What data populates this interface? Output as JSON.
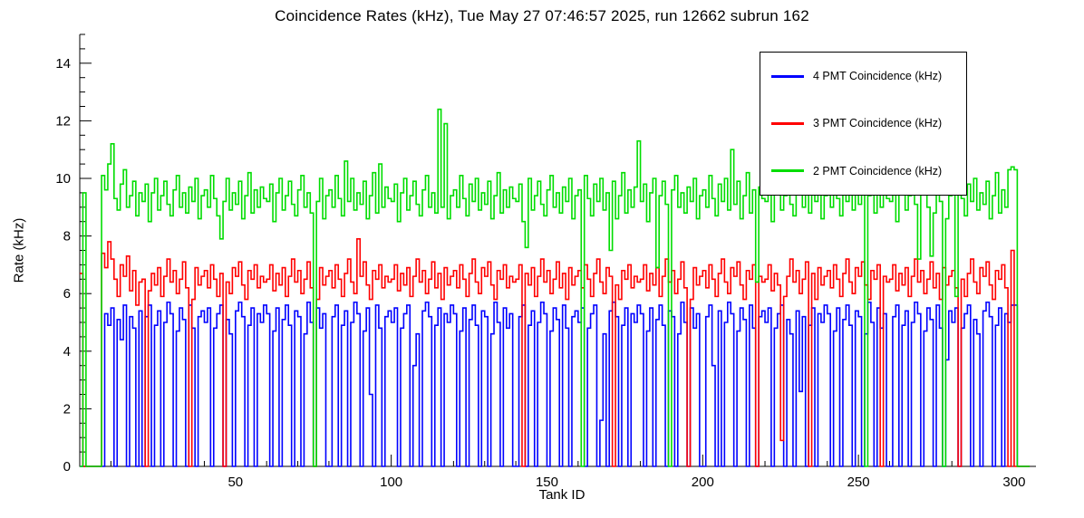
{
  "chart_data": {
    "type": "step-histogram",
    "title": "Coincidence Rates (kHz), Tue May 27 07:46:57 2025, run 12662 subrun 162",
    "xlabel": "Tank ID",
    "ylabel": "Rate (kHz)",
    "xlim": [
      0,
      307
    ],
    "ylim": [
      0,
      15
    ],
    "x_major_ticks": [
      50,
      100,
      150,
      200,
      250,
      300
    ],
    "x_minor_step": 10,
    "y_major_ticks": [
      0,
      2,
      4,
      6,
      8,
      10,
      12,
      14
    ],
    "y_minor_step": 0.5,
    "legend_position": "top-right",
    "axis_color": "#000000",
    "background": "#ffffff",
    "bin_start": 1,
    "series": [
      {
        "name": "4 PMT Coincidence (kHz)",
        "color": "#0000ff",
        "values": [
          0,
          0,
          0,
          0,
          0,
          0,
          0,
          0,
          5.3,
          4.9,
          5.5,
          0,
          5.1,
          4.4,
          5.6,
          0,
          5.2,
          4.8,
          0,
          5.4,
          0,
          5.2,
          5.6,
          0,
          4.9,
          5.4,
          0,
          5.0,
          5.7,
          5.3,
          0,
          4.7,
          5.5,
          5.1,
          0,
          5.6,
          4.8,
          0,
          5.2,
          5.4,
          5.0,
          5.5,
          0,
          4.8,
          5.3,
          5.6,
          0,
          5.1,
          4.6,
          0,
          5.4,
          5.7,
          5.2,
          0,
          4.9,
          5.5,
          0,
          5.3,
          5.0,
          5.6,
          5.3,
          0,
          4.7,
          5.5,
          0,
          5.1,
          5.6,
          4.9,
          0,
          5.4,
          5.2,
          0,
          4.6,
          5.7,
          5.0,
          0,
          5.5,
          4.8,
          5.3,
          0,
          0,
          5.2,
          5.6,
          0,
          4.9,
          5.4,
          0,
          5.0,
          5.7,
          5.3,
          0,
          4.7,
          5.5,
          2.5,
          0,
          5.6,
          4.8,
          0,
          5.2,
          5.4,
          5.0,
          5.5,
          0,
          4.8,
          5.3,
          5.6,
          0,
          3.5,
          4.6,
          0,
          5.4,
          5.7,
          5.2,
          0,
          4.9,
          5.5,
          0,
          5.3,
          5.0,
          5.6,
          5.3,
          0,
          4.7,
          5.5,
          0,
          5.1,
          5.6,
          4.9,
          0,
          5.4,
          5.2,
          0,
          4.6,
          5.7,
          5.0,
          0,
          5.5,
          4.8,
          5.3,
          0,
          0,
          5.2,
          5.6,
          0,
          4.9,
          5.4,
          0,
          5.0,
          5.7,
          5.3,
          0,
          4.7,
          5.5,
          5.1,
          0,
          5.6,
          4.8,
          0,
          5.2,
          5.4,
          5.0,
          5.5,
          0,
          4.8,
          5.3,
          5.6,
          0,
          1.6,
          4.6,
          0,
          5.4,
          5.7,
          5.2,
          0,
          4.9,
          5.5,
          0,
          5.3,
          5.0,
          5.6,
          5.3,
          0,
          4.7,
          5.5,
          0,
          5.1,
          5.6,
          4.9,
          0,
          5.4,
          5.2,
          0,
          4.6,
          5.7,
          5.0,
          0,
          5.5,
          4.8,
          5.3,
          0,
          0,
          5.2,
          5.6,
          3.5,
          0,
          5.4,
          0,
          5.0,
          5.7,
          5.3,
          0,
          4.7,
          5.5,
          5.1,
          0,
          5.6,
          4.8,
          0,
          5.2,
          5.4,
          5.0,
          5.5,
          0,
          4.8,
          5.3,
          5.6,
          0,
          5.1,
          4.6,
          0,
          5.4,
          2.6,
          5.2,
          0,
          4.9,
          5.5,
          0,
          5.3,
          5.0,
          5.6,
          5.3,
          0,
          4.7,
          5.5,
          0,
          5.1,
          5.6,
          4.9,
          0,
          5.4,
          5.2,
          0,
          4.6,
          5.7,
          5.0,
          0,
          5.5,
          4.8,
          5.3,
          0,
          0,
          5.2,
          5.6,
          0,
          4.9,
          5.4,
          0,
          5.0,
          5.7,
          5.3,
          0,
          4.7,
          5.5,
          5.1,
          0,
          5.6,
          4.8,
          0,
          3.7,
          5.4,
          5.0,
          5.5,
          0,
          4.8,
          5.3,
          5.6,
          0,
          5.1,
          4.6,
          0,
          5.4,
          5.7,
          5.2,
          0,
          4.9,
          5.5,
          0,
          5.3,
          5.0,
          5.6,
          5.6,
          0,
          0,
          0,
          0
        ]
      },
      {
        "name": "3 PMT Coincidence (kHz)",
        "color": "#ff0000",
        "values": [
          6.7,
          0,
          0,
          0,
          0,
          0,
          0,
          7.4,
          6.9,
          7.8,
          7.2,
          6.5,
          5.9,
          7.0,
          6.6,
          7.3,
          6.1,
          6.8,
          5.6,
          6.4,
          6.5,
          0,
          6.1,
          6.7,
          6.3,
          6.9,
          5.9,
          6.6,
          7.2,
          6.4,
          6.8,
          6.0,
          6.5,
          7.1,
          6.2,
          0,
          5.8,
          6.9,
          6.3,
          6.6,
          6.8,
          6.2,
          7.0,
          6.5,
          5.9,
          6.7,
          0,
          6.4,
          6.0,
          6.9,
          6.6,
          7.1,
          6.3,
          5.8,
          6.8,
          6.5,
          7.0,
          6.2,
          6.6,
          6.4,
          6.5,
          7.0,
          6.1,
          6.7,
          6.3,
          6.9,
          5.9,
          6.6,
          7.2,
          6.4,
          6.8,
          6.0,
          6.5,
          7.1,
          6.2,
          0,
          5.8,
          6.9,
          6.3,
          6.6,
          6.8,
          6.2,
          7.0,
          6.5,
          5.9,
          6.7,
          7.2,
          6.4,
          6.0,
          7.9,
          6.6,
          7.1,
          6.3,
          5.8,
          6.8,
          6.5,
          7.0,
          6.2,
          6.6,
          6.4,
          6.5,
          7.0,
          6.1,
          6.7,
          6.3,
          6.9,
          5.9,
          6.6,
          7.2,
          6.4,
          6.8,
          6.0,
          6.5,
          7.1,
          6.2,
          6.7,
          5.8,
          6.9,
          6.3,
          6.6,
          6.8,
          6.2,
          7.0,
          6.5,
          5.9,
          6.7,
          7.2,
          6.4,
          6.0,
          6.9,
          6.6,
          7.1,
          6.3,
          5.8,
          6.8,
          6.5,
          7.0,
          6.2,
          6.6,
          6.4,
          6.5,
          7.0,
          0,
          6.7,
          6.3,
          6.9,
          5.9,
          6.6,
          7.2,
          6.4,
          6.8,
          6.0,
          6.5,
          7.1,
          6.2,
          6.7,
          5.8,
          6.9,
          6.3,
          6.6,
          6.8,
          6.2,
          7.0,
          6.5,
          5.9,
          6.7,
          7.2,
          6.4,
          6.0,
          6.9,
          6.6,
          0,
          6.3,
          5.8,
          6.8,
          6.5,
          7.0,
          6.2,
          6.6,
          6.4,
          6.5,
          7.0,
          6.1,
          6.7,
          6.3,
          6.9,
          5.9,
          6.6,
          7.2,
          6.4,
          6.8,
          6.0,
          6.5,
          7.1,
          6.2,
          0,
          5.8,
          6.9,
          6.3,
          6.6,
          6.8,
          6.2,
          7.0,
          6.5,
          5.9,
          6.7,
          7.2,
          6.4,
          6.0,
          6.9,
          6.6,
          7.1,
          6.3,
          5.8,
          6.8,
          6.5,
          7.0,
          0,
          6.6,
          6.4,
          6.5,
          7.0,
          6.1,
          6.7,
          6.3,
          0.9,
          5.9,
          6.6,
          7.2,
          6.4,
          6.8,
          6.0,
          6.5,
          7.1,
          0,
          6.7,
          5.8,
          6.9,
          6.3,
          6.6,
          6.8,
          6.2,
          7.0,
          6.5,
          5.9,
          6.7,
          7.2,
          6.4,
          6.0,
          6.9,
          6.6,
          7.1,
          6.3,
          5.8,
          6.8,
          6.5,
          7.0,
          0,
          6.6,
          6.4,
          6.5,
          7.0,
          6.1,
          6.7,
          6.3,
          6.9,
          5.9,
          6.6,
          7.2,
          6.4,
          6.8,
          6.0,
          6.5,
          7.1,
          6.2,
          6.7,
          5.8,
          6.9,
          6.3,
          6.6,
          6.8,
          6.2,
          0,
          6.5,
          5.9,
          6.7,
          7.2,
          6.4,
          6.0,
          6.9,
          6.6,
          7.1,
          6.3,
          5.8,
          6.8,
          6.5,
          7.0,
          6.2,
          0,
          7.5,
          0,
          0,
          0,
          0,
          0
        ]
      },
      {
        "name": "2 PMT Coincidence (kHz)",
        "color": "#00dd00",
        "values": [
          0,
          9.5,
          0,
          0,
          0,
          0,
          0,
          10.1,
          9.6,
          10.5,
          11.2,
          9.3,
          8.9,
          9.8,
          10.3,
          9.0,
          9.4,
          9.9,
          8.7,
          9.5,
          9.2,
          9.8,
          8.5,
          9.5,
          10.0,
          8.9,
          9.4,
          9.9,
          9.1,
          8.7,
          9.6,
          10.1,
          9.0,
          9.5,
          8.8,
          9.7,
          9.2,
          10.0,
          8.6,
          9.4,
          9.6,
          9.0,
          10.1,
          9.3,
          8.7,
          7.9,
          9.2,
          10.0,
          8.9,
          9.5,
          9.1,
          9.9,
          8.6,
          9.4,
          10.2,
          8.8,
          9.6,
          9.0,
          9.7,
          9.3,
          9.2,
          9.8,
          8.5,
          9.5,
          10.0,
          8.9,
          9.4,
          9.9,
          9.1,
          8.7,
          9.6,
          10.1,
          9.0,
          9.5,
          8.8,
          0,
          9.2,
          10.0,
          8.6,
          9.4,
          9.6,
          9.0,
          10.1,
          9.3,
          8.7,
          10.6,
          9.2,
          10.0,
          8.9,
          9.5,
          9.1,
          9.9,
          8.6,
          9.4,
          10.2,
          8.8,
          10.5,
          9.0,
          9.7,
          9.3,
          9.2,
          9.8,
          8.5,
          9.5,
          10.0,
          8.9,
          9.4,
          9.9,
          9.1,
          8.7,
          9.6,
          10.1,
          9.0,
          9.5,
          8.8,
          12.4,
          9.0,
          11.9,
          8.6,
          9.4,
          9.6,
          9.0,
          10.1,
          9.3,
          8.7,
          9.8,
          9.2,
          10.0,
          8.9,
          9.5,
          9.1,
          9.9,
          8.6,
          9.4,
          10.2,
          8.8,
          9.6,
          9.0,
          9.7,
          9.3,
          9.2,
          9.8,
          8.5,
          7.6,
          10.0,
          8.9,
          9.4,
          9.9,
          9.1,
          8.7,
          9.6,
          10.1,
          9.0,
          9.5,
          8.8,
          9.7,
          9.2,
          10.0,
          8.6,
          9.4,
          9.6,
          0,
          10.1,
          9.3,
          8.7,
          9.8,
          9.2,
          10.0,
          8.9,
          9.5,
          7.5,
          9.9,
          8.6,
          9.4,
          10.2,
          8.8,
          9.6,
          9.0,
          9.7,
          11.3,
          9.2,
          9.8,
          8.5,
          9.5,
          10.0,
          6.9,
          9.4,
          9.9,
          9.1,
          0,
          9.6,
          10.1,
          9.0,
          9.5,
          8.8,
          9.7,
          9.2,
          10.0,
          8.6,
          9.4,
          9.6,
          9.0,
          10.1,
          9.3,
          8.7,
          9.8,
          9.2,
          10.0,
          8.9,
          11.0,
          9.1,
          9.9,
          8.6,
          9.4,
          10.2,
          8.8,
          9.6,
          6.4,
          9.7,
          9.3,
          9.2,
          9.8,
          8.5,
          9.5,
          10.0,
          8.9,
          9.4,
          9.9,
          9.1,
          8.7,
          9.6,
          10.1,
          9.0,
          9.5,
          8.8,
          9.7,
          9.2,
          10.0,
          8.6,
          9.4,
          9.6,
          9.0,
          10.1,
          9.3,
          8.7,
          9.8,
          9.2,
          10.0,
          8.9,
          9.5,
          9.1,
          9.9,
          0,
          9.4,
          10.2,
          8.8,
          9.6,
          9.0,
          9.7,
          9.3,
          9.2,
          9.8,
          8.5,
          9.5,
          10.0,
          8.9,
          9.4,
          9.9,
          9.1,
          7.2,
          9.6,
          10.1,
          9.0,
          7.3,
          8.8,
          9.7,
          9.2,
          0,
          8.6,
          9.4,
          9.6,
          5.9,
          10.1,
          9.3,
          8.7,
          9.8,
          9.2,
          10.0,
          8.9,
          9.5,
          9.1,
          9.9,
          8.6,
          9.4,
          10.2,
          8.8,
          9.6,
          9.0,
          10.3,
          10.4,
          10.3,
          0,
          0,
          0,
          0
        ]
      }
    ]
  }
}
